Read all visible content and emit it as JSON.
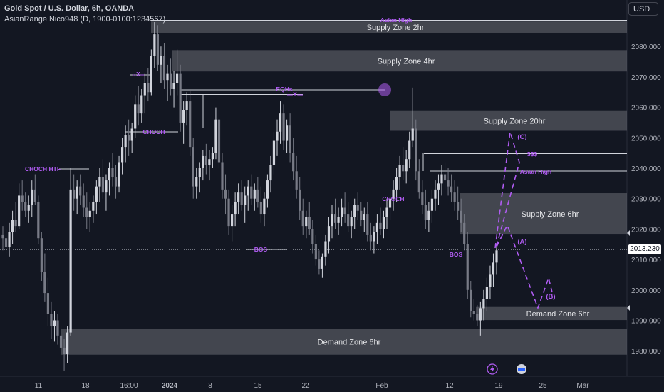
{
  "legend": {
    "title": "Gold Spot / U.S. Dollar, 6h, OANDA",
    "indicator": "AsianRange Nico948 (D, 1900-0100:1234567)"
  },
  "currency_button": "USD",
  "current_price": "2013.230",
  "colors": {
    "background": "#131722",
    "up": "#d1d4dc",
    "down": "#787b86",
    "accent": "#b05cf2",
    "zone": "#434651"
  },
  "icons": [
    "lightning-icon",
    "flag-icon"
  ],
  "chart_data": {
    "type": "candlestick",
    "y_ticks": [
      1980.0,
      1990.0,
      2000.0,
      2010.0,
      2020.0,
      2030.0,
      2040.0,
      2050.0,
      2060.0,
      2070.0,
      2080.0
    ],
    "x_ticks": [
      "11",
      "18",
      "16:00",
      "2024",
      "8",
      "15",
      "22",
      "Feb",
      "12",
      "19",
      "25",
      "Mar"
    ],
    "zones": [
      {
        "label": "Supply Zone 2hr",
        "low": 2084.5,
        "high": 2088.2
      },
      {
        "label": "Supply Zone 4hr",
        "low": 2071.8,
        "high": 2078.8
      },
      {
        "label": "Supply Zone 20hr",
        "low": 2052.3,
        "high": 2058.8
      },
      {
        "label": "Supply Zone 6hr",
        "low": 2018.2,
        "high": 2031.8
      },
      {
        "label": "Demand Zone 6hr",
        "low": 1990.1,
        "high": 1994.4
      },
      {
        "label": "Demand Zone 6hr",
        "low": 1978.7,
        "high": 1987.2
      }
    ],
    "annotations": [
      "Asian High",
      "EQHs",
      "---X---",
      "--X--",
      "CHOCH",
      "CHOCH HTF",
      "BOS",
      "CHOCH",
      "BOS",
      "$$$",
      "Asian High",
      "(C)",
      "(A)",
      "(B)"
    ],
    "candles": [
      [
        2018.0,
        2021.0,
        2013.0,
        2017.0
      ],
      [
        2017.0,
        2020.0,
        2012.0,
        2014.0
      ],
      [
        2014.0,
        2022.0,
        2011.0,
        2019.0
      ],
      [
        2019.0,
        2026.0,
        2015.0,
        2023.0
      ],
      [
        2023.0,
        2029.0,
        2019.0,
        2021.0
      ],
      [
        2021.0,
        2035.0,
        2020.0,
        2031.0
      ],
      [
        2031.0,
        2036.0,
        2026.0,
        2029.0
      ],
      [
        2029.0,
        2032.0,
        2024.0,
        2026.0
      ],
      [
        2026.0,
        2031.0,
        2022.0,
        2028.0
      ],
      [
        2028.0,
        2036.0,
        2024.0,
        2033.0
      ],
      [
        2033.0,
        2038.0,
        2028.0,
        2029.0
      ],
      [
        2029.0,
        2031.0,
        2015.0,
        2017.0
      ],
      [
        2017.0,
        2019.0,
        2003.0,
        2006.0
      ],
      [
        2006.0,
        2012.0,
        1996.0,
        1999.0
      ],
      [
        1999.0,
        2004.0,
        1988.0,
        1992.0
      ],
      [
        1992.0,
        1996.0,
        1984.0,
        1988.0
      ],
      [
        1988.0,
        1993.0,
        1983.0,
        1990.0
      ],
      [
        1990.0,
        1992.0,
        1982.0,
        1985.0
      ],
      [
        1985.0,
        1988.0,
        1978.0,
        1981.0
      ],
      [
        1981.0,
        1984.0,
        1973.5,
        1979.0
      ],
      [
        1979.0,
        1988.0,
        1976.0,
        1986.0
      ],
      [
        1986.0,
        2040.0,
        1985.0,
        2033.0
      ],
      [
        2033.0,
        2038.0,
        2026.0,
        2030.0
      ],
      [
        2030.0,
        2036.0,
        2025.0,
        2034.0
      ],
      [
        2034.0,
        2038.0,
        2028.0,
        2031.0
      ],
      [
        2031.0,
        2035.0,
        2024.0,
        2027.0
      ],
      [
        2027.0,
        2032.0,
        2020.0,
        2024.0
      ],
      [
        2024.0,
        2029.0,
        2019.0,
        2026.0
      ],
      [
        2026.0,
        2031.0,
        2022.0,
        2029.0
      ],
      [
        2029.0,
        2036.0,
        2025.0,
        2034.0
      ],
      [
        2034.0,
        2040.0,
        2029.0,
        2037.0
      ],
      [
        2037.0,
        2043.0,
        2030.0,
        2032.0
      ],
      [
        2032.0,
        2038.0,
        2026.0,
        2036.0
      ],
      [
        2036.0,
        2042.0,
        2031.0,
        2040.0
      ],
      [
        2040.0,
        2045.0,
        2034.0,
        2037.0
      ],
      [
        2037.0,
        2041.0,
        2030.0,
        2034.0
      ],
      [
        2034.0,
        2044.0,
        2032.0,
        2042.0
      ],
      [
        2042.0,
        2050.0,
        2038.0,
        2047.0
      ],
      [
        2047.0,
        2054.0,
        2042.0,
        2051.0
      ],
      [
        2051.0,
        2056.0,
        2044.0,
        2049.0
      ],
      [
        2049.0,
        2055.0,
        2045.0,
        2053.0
      ],
      [
        2053.0,
        2064.0,
        2050.0,
        2061.0
      ],
      [
        2061.0,
        2067.0,
        2054.0,
        2058.0
      ],
      [
        2058.0,
        2066.0,
        2055.0,
        2064.0
      ],
      [
        2064.0,
        2071.0,
        2058.0,
        2068.0
      ],
      [
        2068.0,
        2073.0,
        2062.0,
        2065.0
      ],
      [
        2065.0,
        2079.0,
        2064.0,
        2077.0
      ],
      [
        2077.0,
        2088.0,
        2073.0,
        2084.0
      ],
      [
        2084.0,
        2087.0,
        2072.0,
        2074.0
      ],
      [
        2074.0,
        2080.0,
        2068.0,
        2077.0
      ],
      [
        2077.0,
        2081.0,
        2066.0,
        2069.0
      ],
      [
        2069.0,
        2074.0,
        2062.0,
        2071.0
      ],
      [
        2071.0,
        2076.0,
        2064.0,
        2066.0
      ],
      [
        2066.0,
        2072.0,
        2060.0,
        2068.0
      ],
      [
        2068.0,
        2079.0,
        2064.0,
        2071.0
      ],
      [
        2071.0,
        2074.0,
        2052.0,
        2055.0
      ],
      [
        2055.0,
        2062.0,
        2048.0,
        2059.0
      ],
      [
        2059.0,
        2065.0,
        2054.0,
        2062.0
      ],
      [
        2062.0,
        2066.0,
        2044.0,
        2047.0
      ],
      [
        2047.0,
        2050.0,
        2030.0,
        2034.0
      ],
      [
        2034.0,
        2040.0,
        2030.0,
        2037.0
      ],
      [
        2037.0,
        2042.0,
        2032.0,
        2040.0
      ],
      [
        2040.0,
        2046.0,
        2036.0,
        2044.0
      ],
      [
        2044.0,
        2048.0,
        2038.0,
        2041.0
      ],
      [
        2041.0,
        2046.0,
        2036.0,
        2043.0
      ],
      [
        2043.0,
        2047.0,
        2040.0,
        2045.0
      ],
      [
        2045.0,
        2060.0,
        2043.0,
        2056.0
      ],
      [
        2056.0,
        2059.0,
        2040.0,
        2042.0
      ],
      [
        2042.0,
        2045.0,
        2030.0,
        2033.0
      ],
      [
        2033.0,
        2038.0,
        2025.0,
        2030.0
      ],
      [
        2030.0,
        2033.0,
        2018.0,
        2021.0
      ],
      [
        2021.0,
        2028.0,
        2016.0,
        2025.0
      ],
      [
        2025.0,
        2032.0,
        2021.0,
        2029.0
      ],
      [
        2029.0,
        2035.0,
        2025.0,
        2032.0
      ],
      [
        2032.0,
        2036.0,
        2026.0,
        2028.0
      ],
      [
        2028.0,
        2034.0,
        2022.0,
        2031.0
      ],
      [
        2031.0,
        2036.0,
        2026.0,
        2034.0
      ],
      [
        2034.0,
        2038.0,
        2028.0,
        2030.0
      ],
      [
        2030.0,
        2035.0,
        2026.0,
        2033.0
      ],
      [
        2033.0,
        2037.0,
        2027.0,
        2029.0
      ],
      [
        2029.0,
        2034.0,
        2022.0,
        2025.0
      ],
      [
        2025.0,
        2032.0,
        2021.0,
        2030.0
      ],
      [
        2030.0,
        2038.0,
        2027.0,
        2036.0
      ],
      [
        2036.0,
        2044.0,
        2032.0,
        2041.0
      ],
      [
        2041.0,
        2052.0,
        2038.0,
        2049.0
      ],
      [
        2049.0,
        2056.0,
        2044.0,
        2052.0
      ],
      [
        2052.0,
        2062.0,
        2048.0,
        2058.0
      ],
      [
        2058.0,
        2061.0,
        2046.0,
        2049.0
      ],
      [
        2049.0,
        2056.0,
        2045.0,
        2054.0
      ],
      [
        2054.0,
        2058.0,
        2042.0,
        2045.0
      ],
      [
        2045.0,
        2050.0,
        2036.0,
        2039.0
      ],
      [
        2039.0,
        2044.0,
        2030.0,
        2033.0
      ],
      [
        2033.0,
        2037.0,
        2023.0,
        2026.0
      ],
      [
        2026.0,
        2030.0,
        2018.0,
        2021.0
      ],
      [
        2021.0,
        2026.0,
        2017.0,
        2024.0
      ],
      [
        2024.0,
        2029.0,
        2018.0,
        2020.0
      ],
      [
        2020.0,
        2023.0,
        2012.0,
        2015.0
      ],
      [
        2015.0,
        2018.0,
        2008.0,
        2010.0
      ],
      [
        2010.0,
        2013.0,
        2005.0,
        2007.0
      ],
      [
        2007.0,
        2012.0,
        2004.0,
        2011.0
      ],
      [
        2011.0,
        2018.0,
        2008.0,
        2016.0
      ],
      [
        2016.0,
        2024.0,
        2012.0,
        2021.0
      ],
      [
        2021.0,
        2028.0,
        2017.0,
        2025.0
      ],
      [
        2025.0,
        2030.0,
        2020.0,
        2022.0
      ],
      [
        2022.0,
        2027.0,
        2018.0,
        2024.0
      ],
      [
        2024.0,
        2030.0,
        2021.0,
        2027.0
      ],
      [
        2027.0,
        2032.0,
        2022.0,
        2025.0
      ],
      [
        2025.0,
        2029.0,
        2019.0,
        2021.0
      ],
      [
        2021.0,
        2026.0,
        2017.0,
        2024.0
      ],
      [
        2024.0,
        2030.0,
        2020.0,
        2028.0
      ],
      [
        2028.0,
        2032.0,
        2023.0,
        2026.0
      ],
      [
        2026.0,
        2029.0,
        2021.0,
        2023.0
      ],
      [
        2023.0,
        2027.0,
        2019.0,
        2025.0
      ],
      [
        2025.0,
        2029.0,
        2016.0,
        2018.0
      ],
      [
        2018.0,
        2022.0,
        2013.0,
        2016.0
      ],
      [
        2016.0,
        2021.0,
        2012.0,
        2019.0
      ],
      [
        2019.0,
        2025.0,
        2015.0,
        2022.0
      ],
      [
        2022.0,
        2027.0,
        2018.0,
        2020.0
      ],
      [
        2020.0,
        2026.0,
        2017.0,
        2024.0
      ],
      [
        2024.0,
        2030.0,
        2020.0,
        2027.0
      ],
      [
        2027.0,
        2033.0,
        2023.0,
        2030.0
      ],
      [
        2030.0,
        2036.0,
        2026.0,
        2033.0
      ],
      [
        2033.0,
        2040.0,
        2029.0,
        2037.0
      ],
      [
        2037.0,
        2044.0,
        2033.0,
        2041.0
      ],
      [
        2041.0,
        2047.0,
        2036.0,
        2039.0
      ],
      [
        2039.0,
        2046.0,
        2035.0,
        2043.0
      ],
      [
        2043.0,
        2052.0,
        2040.0,
        2049.0
      ],
      [
        2049.0,
        2066.5,
        2047.0,
        2053.0
      ],
      [
        2053.0,
        2056.0,
        2036.0,
        2039.0
      ],
      [
        2039.0,
        2043.0,
        2030.0,
        2032.0
      ],
      [
        2032.0,
        2036.0,
        2025.0,
        2028.0
      ],
      [
        2028.0,
        2033.0,
        2020.0,
        2023.0
      ],
      [
        2023.0,
        2029.0,
        2019.0,
        2026.0
      ],
      [
        2026.0,
        2033.0,
        2022.0,
        2030.0
      ],
      [
        2030.0,
        2036.0,
        2026.0,
        2033.0
      ],
      [
        2033.0,
        2038.0,
        2028.0,
        2035.0
      ],
      [
        2035.0,
        2041.0,
        2031.0,
        2038.0
      ],
      [
        2038.0,
        2042.0,
        2033.0,
        2036.0
      ],
      [
        2036.0,
        2040.0,
        2031.0,
        2034.0
      ],
      [
        2034.0,
        2038.0,
        2029.0,
        2032.0
      ],
      [
        2032.0,
        2036.0,
        2026.0,
        2029.0
      ],
      [
        2029.0,
        2034.0,
        2023.0,
        2026.0
      ],
      [
        2026.0,
        2030.0,
        2019.0,
        2022.0
      ],
      [
        2022.0,
        2025.0,
        2013.0,
        2015.0
      ],
      [
        2015.0,
        2019.0,
        1997.0,
        2000.0
      ],
      [
        2000.0,
        2003.0,
        1991.0,
        1993.0
      ],
      [
        1993.0,
        1997.0,
        1990.0,
        1992.0
      ],
      [
        1992.0,
        1995.0,
        1988.0,
        1990.0
      ],
      [
        1990.0,
        1996.0,
        1985.0,
        1994.0
      ],
      [
        1994.0,
        2000.0,
        1990.0,
        1997.0
      ],
      [
        1997.0,
        2004.0,
        1993.0,
        2001.0
      ],
      [
        2001.0,
        2008.0,
        1997.0,
        2005.0
      ],
      [
        2005.0,
        2012.0,
        2001.0,
        2009.0
      ],
      [
        2009.0,
        2015.0,
        2005.0,
        2013.0
      ]
    ]
  }
}
